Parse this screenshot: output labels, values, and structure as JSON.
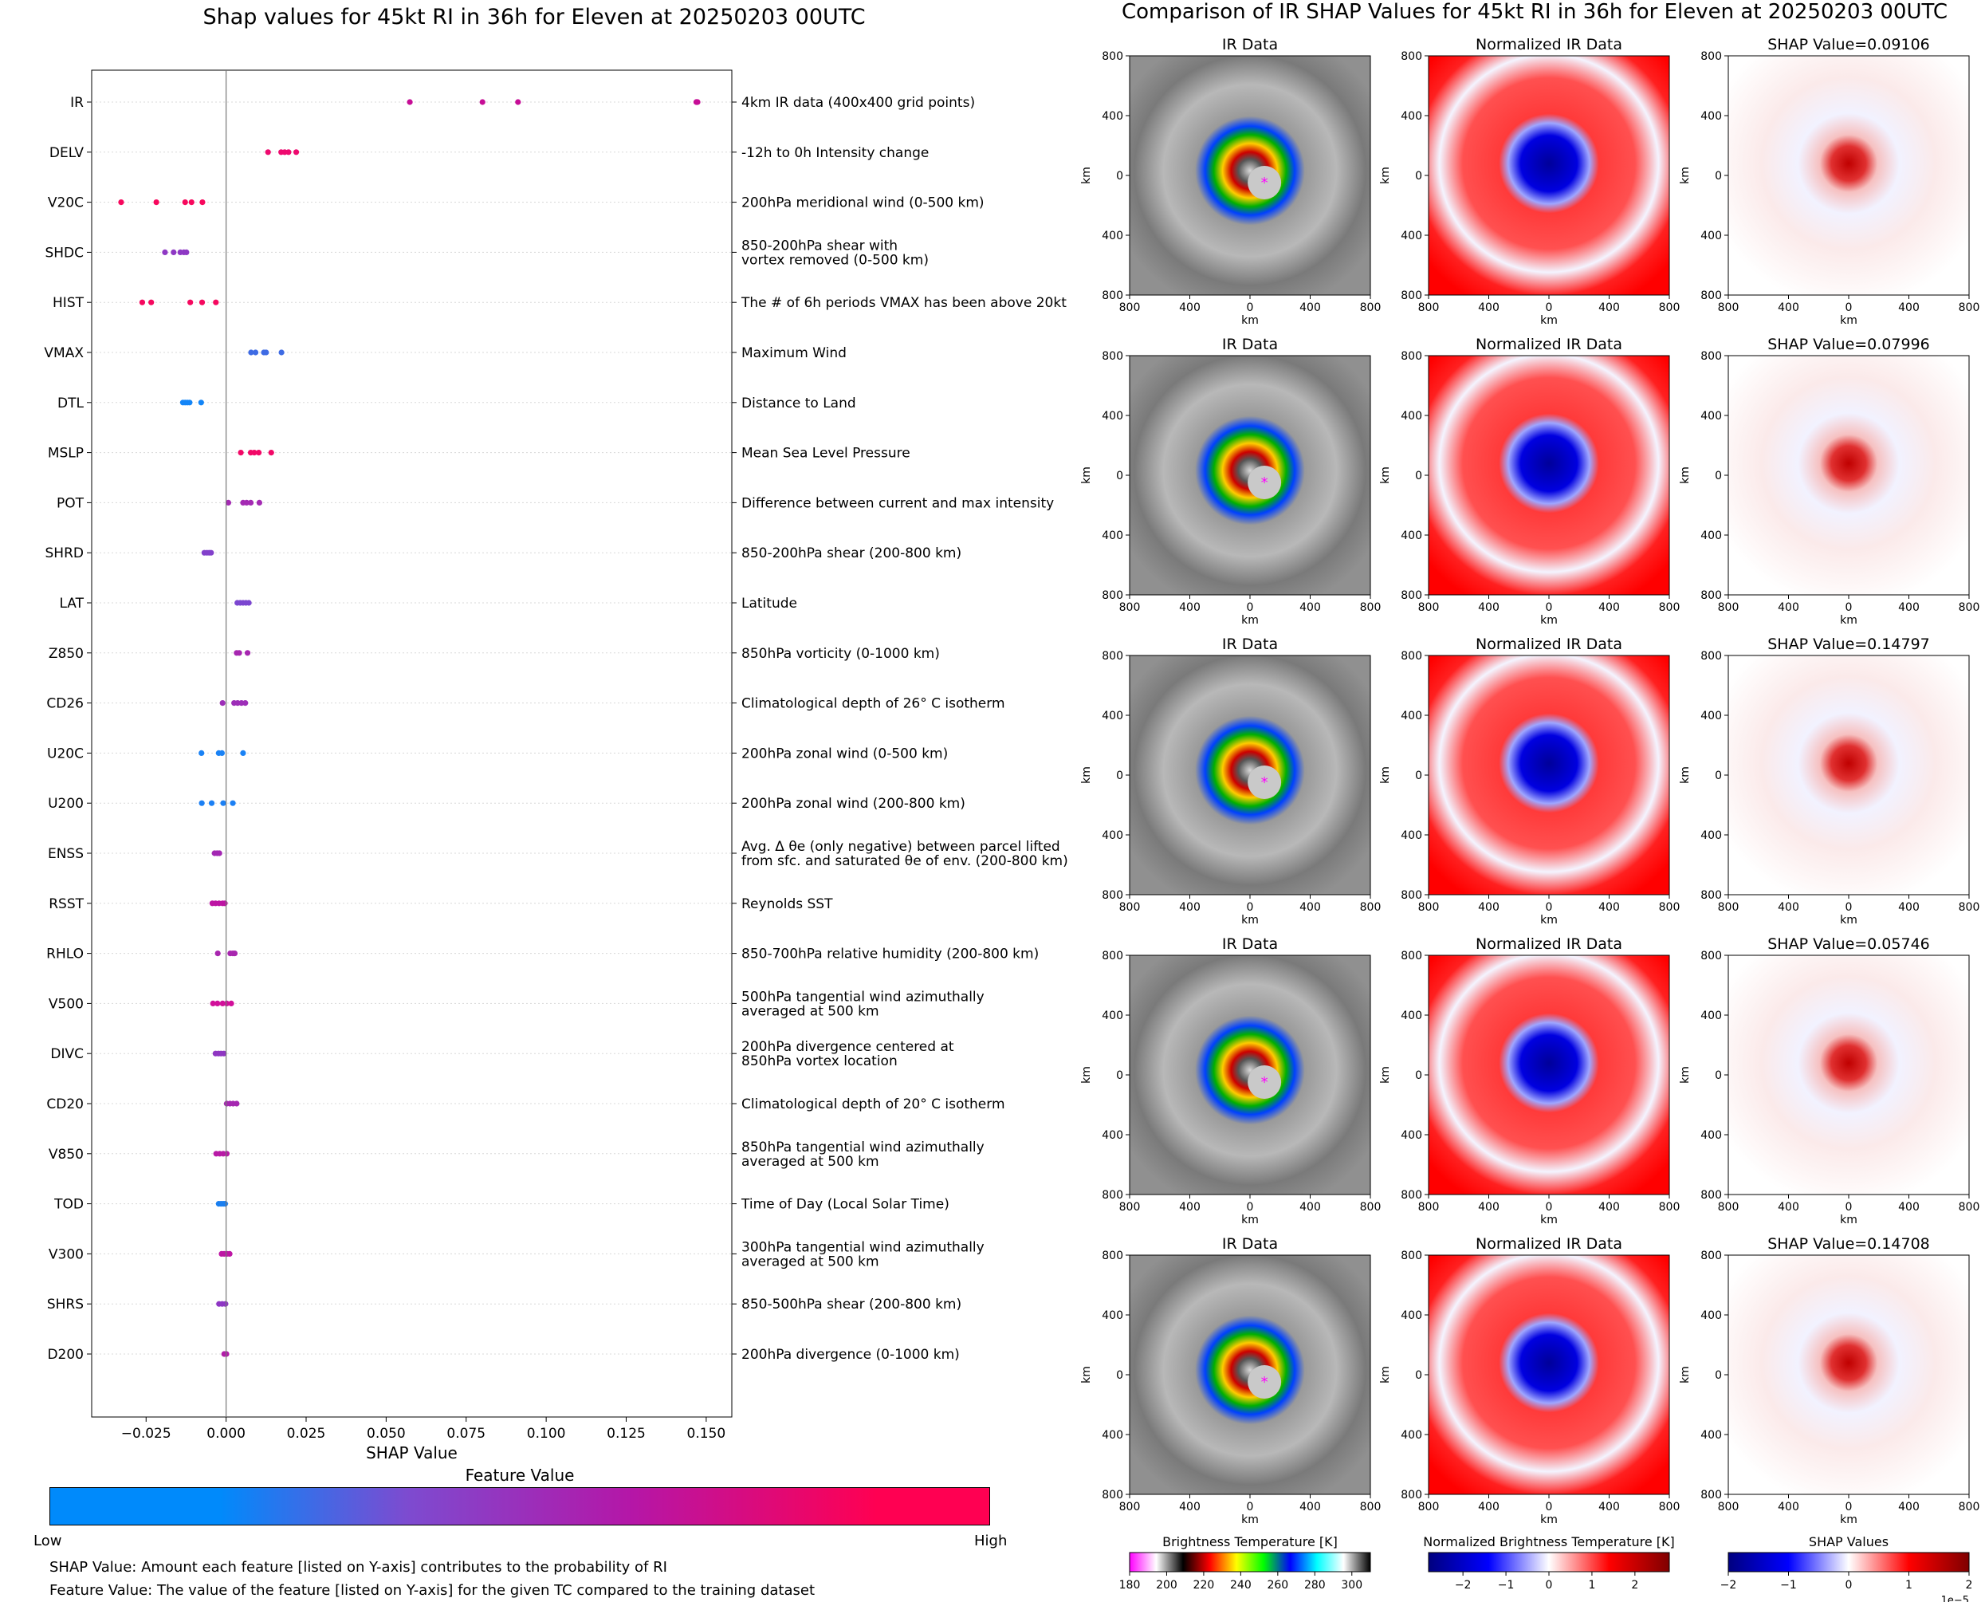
{
  "left_title": "Shap values for 45kt RI in 36h for Eleven at 20250203 00UTC",
  "right_title": "Comparison of IR SHAP Values for 45kt RI in 36h for Eleven at 20250203 00UTC",
  "colorbar": {
    "title": "Feature Value",
    "low_label": "Low",
    "high_label": "High",
    "colors": [
      "#008afb",
      "#7d4bd0",
      "#b516a7",
      "#ff0052"
    ]
  },
  "notes": {
    "shap_note": "SHAP Value: Amount each feature [listed on Y-axis] contributes to the probability of RI",
    "feature_note": "Feature Value: The value of the feature [listed on Y-axis] for the given TC compared to the training dataset"
  },
  "chart_data": [
    {
      "type": "scatter",
      "title": "Shap values for 45kt RI in 36h for Eleven at 20250203 00UTC",
      "xlabel": "SHAP Value",
      "xlim": [
        -0.042,
        0.158
      ],
      "xticks": [
        -0.025,
        0.0,
        0.025,
        0.05,
        0.075,
        0.1,
        0.125,
        0.15
      ],
      "xtick_labels": [
        "−0.025",
        "0.000",
        "0.025",
        "0.050",
        "0.075",
        "0.100",
        "0.125",
        "0.150"
      ],
      "vertical_line_at": 0.0,
      "features": [
        {
          "name": "IR",
          "description": [
            "4km IR data (400x400 grid points)"
          ],
          "color": "#c60d96",
          "values": [
            0.0574,
            0.0801,
            0.0912,
            0.1469,
            0.147,
            0.1471,
            0.1473
          ]
        },
        {
          "name": "DELV",
          "description": [
            "-12h to 0h Intensity change"
          ],
          "color": "#ee0a6f",
          "values": [
            0.0131,
            0.0172,
            0.0183,
            0.0195,
            0.0219
          ]
        },
        {
          "name": "V20C",
          "description": [
            "200hPa meridional wind (0-500 km)"
          ],
          "color": "#f7085d",
          "values": [
            -0.0328,
            -0.0218,
            -0.0128,
            -0.0108,
            -0.0074
          ]
        },
        {
          "name": "SHDC",
          "description": [
            "850-200hPa shear with",
            "vortex removed (0-500 km)"
          ],
          "color": "#8e38c4",
          "values": [
            -0.0191,
            -0.0164,
            -0.0143,
            -0.0132,
            -0.0124
          ]
        },
        {
          "name": "HIST",
          "description": [
            "The # of 6h periods VMAX has been above 20kt"
          ],
          "color": "#f5095f",
          "values": [
            -0.0262,
            -0.0234,
            -0.0112,
            -0.0075,
            -0.0032
          ]
        },
        {
          "name": "VMAX",
          "description": [
            "Maximum Wind"
          ],
          "color": "#3e6be4",
          "values": [
            0.0078,
            0.0092,
            0.0118,
            0.0125,
            0.0173
          ]
        },
        {
          "name": "DTL",
          "description": [
            "Distance to Land"
          ],
          "color": "#1385f7",
          "values": [
            -0.0135,
            -0.0128,
            -0.0121,
            -0.0114,
            -0.0078
          ]
        },
        {
          "name": "MSLP",
          "description": [
            "Mean Sea Level Pressure"
          ],
          "color": "#f20867",
          "values": [
            0.0046,
            0.0077,
            0.0088,
            0.0102,
            0.0141
          ]
        },
        {
          "name": "POT",
          "description": [
            "Difference between current and max intensity"
          ],
          "color": "#a42ab3",
          "values": [
            0.0007,
            0.0053,
            0.0064,
            0.0077,
            0.0104
          ]
        },
        {
          "name": "SHRD",
          "description": [
            "850-200hPa shear (200-800 km)"
          ],
          "color": "#8240cb",
          "values": [
            -0.0068,
            -0.006,
            -0.0053,
            -0.0047
          ]
        },
        {
          "name": "LAT",
          "description": [
            "Latitude"
          ],
          "color": "#7b46d0",
          "values": [
            0.0035,
            0.0044,
            0.0053,
            0.0062,
            0.0071
          ]
        },
        {
          "name": "Z850",
          "description": [
            "850hPa vorticity (0-1000 km)"
          ],
          "color": "#a626b0",
          "values": [
            0.0033,
            0.0041,
            0.0067
          ]
        },
        {
          "name": "CD26",
          "description": [
            "Climatological depth of 26° C isotherm"
          ],
          "color": "#9d2eb8",
          "values": [
            -0.0011,
            0.0025,
            0.0036,
            0.0048,
            0.006
          ]
        },
        {
          "name": "U20C",
          "description": [
            "200hPa zonal wind (0-500 km)"
          ],
          "color": "#1a82f5",
          "values": [
            -0.0077,
            -0.0023,
            -0.0013,
            0.0053
          ]
        },
        {
          "name": "U200",
          "description": [
            "200hPa zonal wind (200-800 km)"
          ],
          "color": "#1c80f4",
          "values": [
            -0.0076,
            -0.0045,
            -0.0009,
            0.0021
          ]
        },
        {
          "name": "ENSS",
          "description": [
            "Avg. Δ θe (only negative) between parcel lifted",
            "from sfc. and saturated θe of env. (200-800 km)"
          ],
          "color": "#a327b3",
          "values": [
            -0.0036,
            -0.0028,
            -0.0021
          ]
        },
        {
          "name": "RSST",
          "description": [
            "Reynolds SST"
          ],
          "color": "#bd14a3",
          "values": [
            -0.0043,
            -0.0033,
            -0.0022,
            -0.0011,
            -0.0004
          ]
        },
        {
          "name": "RHLO",
          "description": [
            "850-700hPa relative humidity (200-800 km)"
          ],
          "color": "#a826af",
          "values": [
            -0.0026,
            0.0013,
            0.0021,
            0.0027
          ]
        },
        {
          "name": "V500",
          "description": [
            "500hPa tangential wind azimuthally",
            "averaged at 500 km"
          ],
          "color": "#d1109a",
          "values": [
            -0.0041,
            -0.0027,
            -0.0011,
            0.0002,
            0.0016
          ]
        },
        {
          "name": "DIVC",
          "description": [
            "200hPa divergence centered at",
            "850hPa vortex location"
          ],
          "color": "#8f36c2",
          "values": [
            -0.0033,
            -0.0024,
            -0.0016,
            -0.0007
          ]
        },
        {
          "name": "CD20",
          "description": [
            "Climatological depth of 20° C isotherm"
          ],
          "color": "#a527b0",
          "values": [
            0.0002,
            0.0012,
            0.0022,
            0.0033
          ]
        },
        {
          "name": "V850",
          "description": [
            "850hPa tangential wind azimuthally",
            "averaged at 500 km"
          ],
          "color": "#b81aa6",
          "values": [
            -0.0031,
            -0.002,
            -0.0009,
            0.0002
          ]
        },
        {
          "name": "TOD",
          "description": [
            "Time of Day (Local Solar Time)"
          ],
          "color": "#1a7ff0",
          "values": [
            -0.0023,
            -0.0016,
            -0.0009,
            -0.0003
          ]
        },
        {
          "name": "V300",
          "description": [
            "300hPa tangential wind azimuthally",
            "averaged at 500 km"
          ],
          "color": "#bd16a4",
          "values": [
            -0.0014,
            -0.0006,
            0.0003,
            0.0011
          ]
        },
        {
          "name": "SHRS",
          "description": [
            "850-500hPa shear (200-800 km)"
          ],
          "color": "#8e36c4",
          "values": [
            -0.0022,
            -0.0012,
            -0.0002
          ]
        },
        {
          "name": "D200",
          "description": [
            "200hPa divergence (0-1000 km)"
          ],
          "color": "#b21ba9",
          "values": [
            -0.0006,
            0.0001
          ]
        }
      ]
    },
    {
      "type": "heatmap",
      "title": "Comparison of IR SHAP Values for 45kt RI in 36h for Eleven at 20250203 00UTC",
      "axis_label": "km",
      "axis_tick_labels": [
        "800",
        "400",
        "0",
        "400",
        "800"
      ],
      "column_titles": [
        "IR Data",
        "Normalized IR Data"
      ],
      "rows": [
        {
          "shap_title": "SHAP Value=0.09106",
          "shap_value": 0.09106
        },
        {
          "shap_title": "SHAP Value=0.07996",
          "shap_value": 0.07996
        },
        {
          "shap_title": "SHAP Value=0.14797",
          "shap_value": 0.14797
        },
        {
          "shap_title": "SHAP Value=0.05746",
          "shap_value": 0.05746
        },
        {
          "shap_title": "SHAP Value=0.14708",
          "shap_value": 0.14708
        }
      ],
      "colorbars": [
        {
          "label": "Brightness Temperature [K]",
          "tick_labels": [
            "180",
            "200",
            "220",
            "240",
            "260",
            "280",
            "300"
          ],
          "range": [
            180,
            310
          ],
          "colors": [
            "#ff00ff",
            "#ffffff",
            "#000000",
            "#ff0000",
            "#ffff00",
            "#00ff00",
            "#0000ff",
            "#00ffff",
            "#ffffff",
            "#000000"
          ]
        },
        {
          "label": "Normalized Brightness Temperature [K]",
          "tick_labels": [
            "−2",
            "−1",
            "0",
            "1",
            "2"
          ],
          "range": [
            -2.8,
            2.8
          ],
          "colors": [
            "#00007f",
            "#0000ff",
            "#ffffff",
            "#ff0000",
            "#7f0000"
          ]
        },
        {
          "label": "SHAP Values",
          "tick_labels": [
            "−2",
            "−1",
            "0",
            "1",
            "2"
          ],
          "range": [
            -2,
            2
          ],
          "offset_label": "1e−5",
          "colors": [
            "#00007f",
            "#0000ff",
            "#ffffff",
            "#ff0000",
            "#7f0000"
          ]
        }
      ]
    }
  ]
}
